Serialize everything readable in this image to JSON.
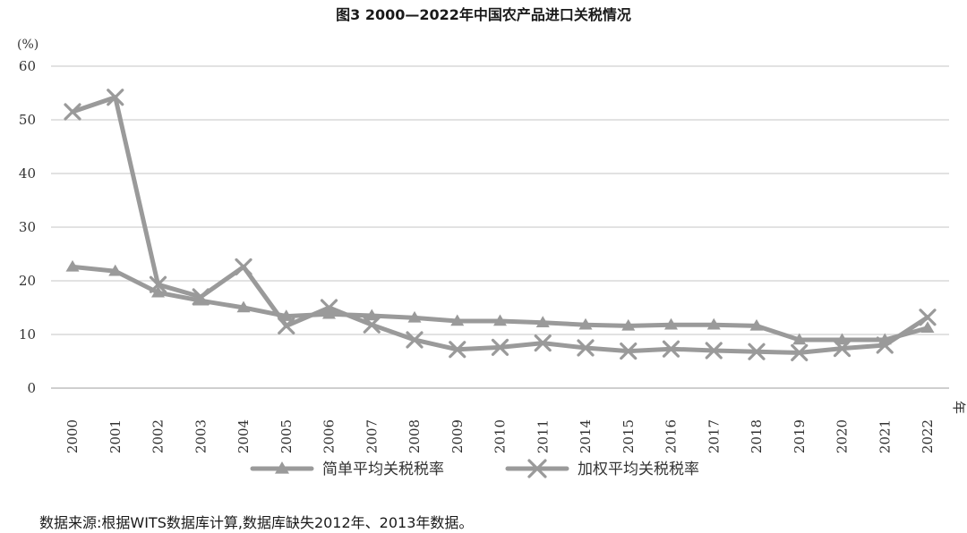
{
  "title": "图3 2000—2022年中国农产品进口关税情况",
  "source_note": "数据来源:根据WITS数据库计算,数据库缺失2012年、2013年数据。",
  "colors": {
    "series": "#9a9a9a",
    "grid": "#d9d9d9",
    "axis": "#bfbfbf"
  },
  "chart_data": {
    "type": "line",
    "y_unit_label": "(%)",
    "x_unit_label": "年",
    "ylim": [
      0,
      60
    ],
    "y_ticks": [
      0,
      10,
      20,
      30,
      40,
      50,
      60
    ],
    "grid": true,
    "legend_position": "bottom",
    "categories": [
      "2000",
      "2001",
      "2002",
      "2003",
      "2004",
      "2005",
      "2006",
      "2007",
      "2008",
      "2009",
      "2010",
      "2011",
      "2014",
      "2015",
      "2016",
      "2017",
      "2018",
      "2019",
      "2020",
      "2021",
      "2022"
    ],
    "series": [
      {
        "name": "简单平均关税税率",
        "marker": "triangle",
        "values": [
          22.6,
          21.8,
          17.8,
          16.3,
          15.0,
          13.4,
          13.8,
          13.5,
          13.1,
          12.5,
          12.5,
          12.2,
          11.8,
          11.6,
          11.8,
          11.8,
          11.6,
          9.0,
          9.0,
          9.0,
          11.2
        ]
      },
      {
        "name": "加权平均关税税率",
        "marker": "x",
        "values": [
          51.5,
          54.2,
          19.3,
          17.0,
          22.6,
          11.6,
          15.0,
          11.8,
          9.0,
          7.2,
          7.6,
          8.4,
          7.5,
          6.9,
          7.3,
          7.0,
          6.8,
          6.6,
          7.4,
          8.0,
          13.2
        ]
      }
    ]
  }
}
